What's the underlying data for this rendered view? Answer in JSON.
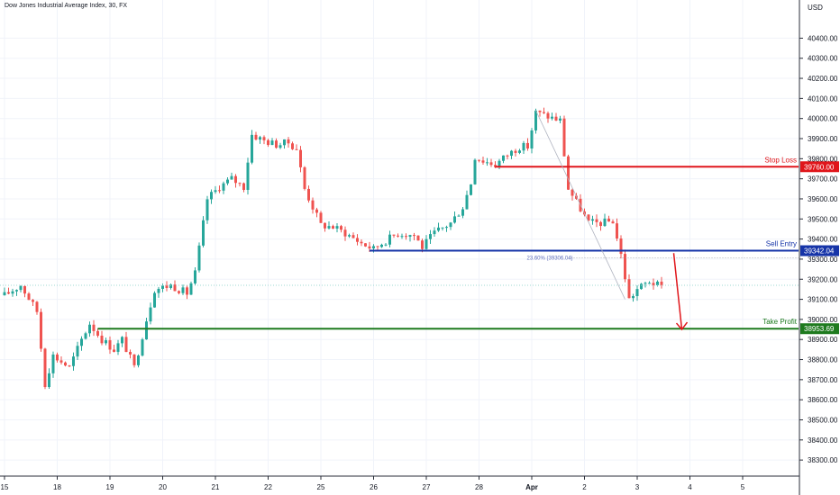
{
  "title": "Dow Jones Industrial Average Index, 30, FX",
  "currency": "USD",
  "colors": {
    "up": "#26a69a",
    "down": "#ef5350",
    "stop_loss": "#e0161b",
    "sell_entry": "#1634a8",
    "take_profit": "#1e7a1e",
    "grid": "#f0f3fa",
    "axis_text": "#131722",
    "arrow": "#e0161b"
  },
  "chart_data": {
    "type": "candlestick",
    "title": "Dow Jones Industrial Average Index, 30, FX",
    "currency": "USD",
    "ylim": [
      38220,
      40590
    ],
    "y_ticks": [
      38300,
      38400,
      38500,
      38600,
      38700,
      38800,
      38900,
      39000,
      39100,
      39200,
      39300,
      39400,
      39500,
      39600,
      39700,
      39800,
      39900,
      40000,
      40100,
      40200,
      40300,
      40400
    ],
    "y_tick_labels": [
      "38300.00",
      "38400.00",
      "38500.00",
      "38600.00",
      "38700.00",
      "38800.00",
      "38900.00",
      "39000.00",
      "39100.00",
      "39200.00",
      "39300.00",
      "39400.00",
      "39500.00",
      "39600.00",
      "39700.00",
      "39800.00",
      "39900.00",
      "40000.00",
      "40100.00",
      "40200.00",
      "40300.00",
      "40400.00"
    ],
    "x_tick_labels": [
      "15",
      "18",
      "19",
      "20",
      "21",
      "22",
      "25",
      "26",
      "27",
      "28",
      "Apr",
      "2",
      "3",
      "4",
      "5"
    ],
    "x_tick_index": [
      0,
      13,
      26,
      39,
      52,
      65,
      78,
      91,
      104,
      117,
      130,
      143,
      156,
      169,
      182
    ],
    "price_path": [
      [
        0,
        39120
      ],
      [
        4,
        39170
      ],
      [
        8,
        39040
      ],
      [
        10,
        38680
      ],
      [
        12,
        38820
      ],
      [
        16,
        38760
      ],
      [
        19,
        38900
      ],
      [
        21,
        38980
      ],
      [
        24,
        38900
      ],
      [
        27,
        38850
      ],
      [
        29,
        38900
      ],
      [
        32,
        38760
      ],
      [
        35,
        39000
      ],
      [
        37,
        39150
      ],
      [
        41,
        39170
      ],
      [
        45,
        39130
      ],
      [
        47,
        39230
      ],
      [
        50,
        39600
      ],
      [
        53,
        39660
      ],
      [
        56,
        39700
      ],
      [
        59,
        39660
      ],
      [
        61,
        39920
      ],
      [
        64,
        39890
      ],
      [
        67,
        39870
      ],
      [
        70,
        39880
      ],
      [
        72,
        39850
      ],
      [
        74,
        39650
      ],
      [
        78,
        39470
      ],
      [
        81,
        39460
      ],
      [
        84,
        39430
      ],
      [
        88,
        39380
      ],
      [
        91,
        39350
      ],
      [
        93,
        39380
      ],
      [
        97,
        39430
      ],
      [
        101,
        39420
      ],
      [
        103,
        39360
      ],
      [
        106,
        39430
      ],
      [
        110,
        39480
      ],
      [
        113,
        39560
      ],
      [
        115,
        39680
      ],
      [
        116,
        39810
      ],
      [
        118,
        39790
      ],
      [
        121,
        39770
      ],
      [
        124,
        39820
      ],
      [
        127,
        39860
      ],
      [
        129,
        39860
      ],
      [
        131,
        40030
      ],
      [
        134,
        40010
      ],
      [
        137,
        39990
      ],
      [
        139,
        39650
      ],
      [
        142,
        39550
      ],
      [
        144,
        39480
      ],
      [
        147,
        39480
      ],
      [
        150,
        39490
      ],
      [
        152,
        39320
      ],
      [
        154,
        39100
      ],
      [
        156,
        39150
      ],
      [
        159,
        39190
      ],
      [
        162,
        39160
      ]
    ],
    "levels": [
      {
        "name": "Stop Loss",
        "value": 39760.0,
        "label": "39760.00",
        "from_index": 121
      },
      {
        "name": "Sell Entry",
        "value": 39342.04,
        "label": "39342.04",
        "from_index": 90
      },
      {
        "name": "Take Profit",
        "value": 38953.69,
        "label": "38953.69",
        "from_index": 23
      }
    ],
    "fib_annotation": {
      "text": "23.60% (39306.04)",
      "value": 39306.04,
      "from_index": 131
    },
    "fib_trendline": {
      "from": [
        131,
        40040
      ],
      "to": [
        153,
        39100
      ]
    },
    "arrow": {
      "from": [
        165,
        39330
      ],
      "to": [
        167,
        38950
      ]
    },
    "current_price": 39170
  }
}
